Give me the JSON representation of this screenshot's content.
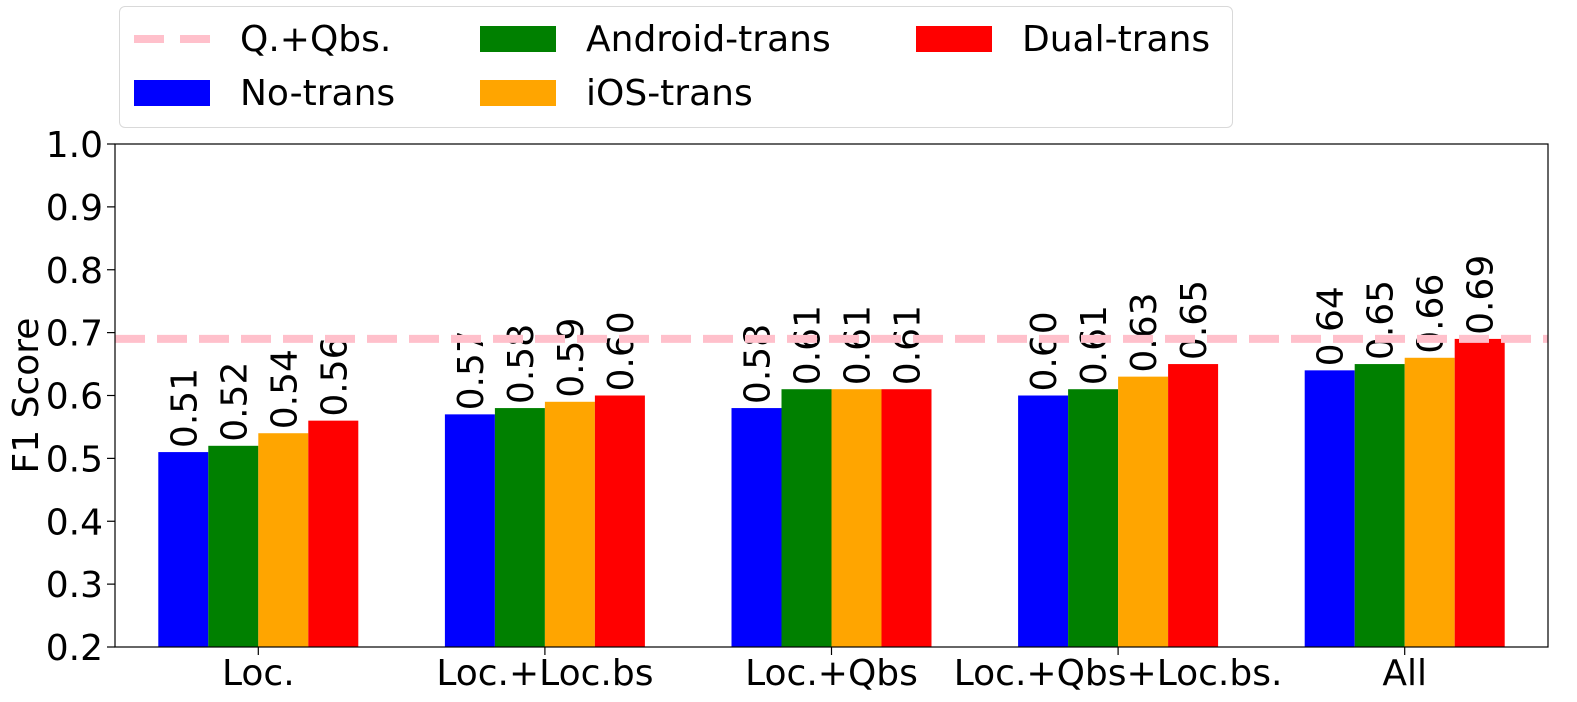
{
  "chart_data": {
    "type": "bar",
    "categories": [
      "Loc.",
      "Loc.+Loc.bs",
      "Loc.+Qbs",
      "Loc.+Qbs+Loc.bs.",
      "All"
    ],
    "series": [
      {
        "name": "No-trans",
        "color": "#0000ff",
        "values": [
          0.51,
          0.57,
          0.58,
          0.6,
          0.64
        ],
        "labels": [
          "0.51",
          "0.57",
          "0.58",
          "0.60",
          "0.64"
        ]
      },
      {
        "name": "Android-trans",
        "color": "#008000",
        "values": [
          0.52,
          0.58,
          0.61,
          0.61,
          0.65
        ],
        "labels": [
          "0.52",
          "0.58",
          "0.61",
          "0.61",
          "0.65"
        ]
      },
      {
        "name": "iOS-trans",
        "color": "#ffa500",
        "values": [
          0.54,
          0.59,
          0.61,
          0.63,
          0.66
        ],
        "labels": [
          "0.54",
          "0.59",
          "0.61",
          "0.63",
          "0.66"
        ]
      },
      {
        "name": "Dual-trans",
        "color": "#ff0000",
        "values": [
          0.56,
          0.6,
          0.61,
          0.65,
          0.69
        ],
        "labels": [
          "0.56",
          "0.60",
          "0.61",
          "0.65",
          "0.69"
        ]
      }
    ],
    "reference_line": {
      "name": "Q.+Qbs.",
      "value": 0.69,
      "color": "#ffc0cb",
      "style": "dashed"
    },
    "ylabel": "F1 Score",
    "xlabel": "",
    "ylim": [
      0.2,
      1.0
    ],
    "yticks": [
      "0.2",
      "0.3",
      "0.4",
      "0.5",
      "0.6",
      "0.7",
      "0.8",
      "0.9",
      "1.0"
    ],
    "grid": false,
    "legend_position": "top"
  },
  "legend": {
    "reference": "Q.+Qbs.",
    "items": [
      "No-trans",
      "Android-trans",
      "iOS-trans",
      "Dual-trans"
    ]
  }
}
